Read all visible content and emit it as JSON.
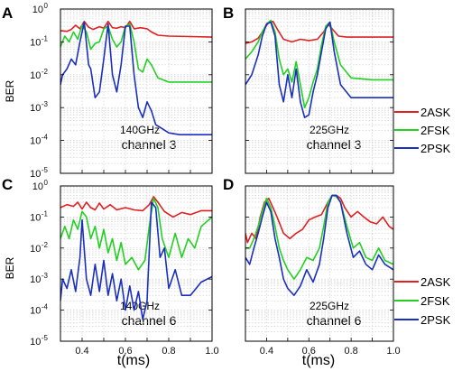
{
  "figure": {
    "x_axis_label": "t(ms)",
    "y_axis_label": "BER"
  },
  "legend": {
    "entries": [
      {
        "label": "2ASK",
        "color": "#e02020"
      },
      {
        "label": "2FSK",
        "color": "#22d022"
      },
      {
        "label": "2PSK",
        "color": "#1a2fc0"
      }
    ]
  },
  "chart_data": [
    {
      "type": "line",
      "panel": "A",
      "annotation_freq": "140GHz",
      "annotation_channel": "channel 3",
      "x_range": [
        0.3,
        1.0
      ],
      "y_range": [
        1e-05,
        1
      ],
      "y_scale": "log",
      "x_ticks": [],
      "y_ticks": [
        "10-5",
        "10-4",
        "10-3",
        "10-2",
        "10-1",
        "100"
      ],
      "grid": true,
      "series": [
        {
          "name": "2ASK",
          "color": "#e02020",
          "x": [
            0.3,
            0.33,
            0.35,
            0.37,
            0.39,
            0.41,
            0.43,
            0.45,
            0.48,
            0.5,
            0.52,
            0.54,
            0.56,
            0.58,
            0.6,
            0.62,
            0.64,
            0.67,
            0.7,
            0.72,
            0.75,
            0.8,
            0.9,
            1.0
          ],
          "y": [
            0.22,
            0.21,
            0.24,
            0.32,
            0.25,
            0.42,
            0.28,
            0.24,
            0.29,
            0.26,
            0.42,
            0.27,
            0.26,
            0.29,
            0.27,
            0.42,
            0.25,
            0.27,
            0.25,
            0.2,
            0.16,
            0.15,
            0.145,
            0.14
          ]
        },
        {
          "name": "2FSK",
          "color": "#22d022",
          "x": [
            0.3,
            0.32,
            0.34,
            0.36,
            0.38,
            0.4,
            0.42,
            0.44,
            0.46,
            0.48,
            0.5,
            0.52,
            0.54,
            0.56,
            0.58,
            0.6,
            0.62,
            0.64,
            0.66,
            0.68,
            0.7,
            0.72,
            0.75,
            0.8,
            0.9,
            1.0
          ],
          "y": [
            0.07,
            0.15,
            0.1,
            0.2,
            0.12,
            0.32,
            0.2,
            0.06,
            0.09,
            0.1,
            0.25,
            0.3,
            0.12,
            0.07,
            0.1,
            0.3,
            0.35,
            0.1,
            0.015,
            0.012,
            0.03,
            0.02,
            0.008,
            0.006,
            0.006,
            0.006
          ]
        },
        {
          "name": "2PSK",
          "color": "#1a2fc0",
          "x": [
            0.3,
            0.31,
            0.33,
            0.35,
            0.37,
            0.39,
            0.41,
            0.43,
            0.44,
            0.46,
            0.48,
            0.5,
            0.52,
            0.54,
            0.56,
            0.58,
            0.6,
            0.62,
            0.64,
            0.66,
            0.68,
            0.7,
            0.72,
            0.74,
            0.76,
            0.8,
            0.85,
            0.9,
            1.0
          ],
          "y": [
            0.005,
            0.01,
            0.015,
            0.03,
            0.02,
            0.1,
            0.4,
            0.02,
            0.015,
            0.002,
            0.003,
            0.03,
            0.35,
            0.01,
            0.003,
            0.02,
            0.3,
            0.3,
            0.01,
            0.001,
            0.0005,
            0.0015,
            0.0008,
            0.0003,
            0.00025,
            0.00017,
            0.00015,
            0.00015,
            0.00015
          ]
        }
      ]
    },
    {
      "type": "line",
      "panel": "B",
      "annotation_freq": "225GHz",
      "annotation_channel": "channel 3",
      "x_range": [
        0.3,
        1.0
      ],
      "y_range": [
        1e-05,
        1
      ],
      "y_scale": "log",
      "x_ticks": [],
      "y_ticks": [],
      "grid": true,
      "series": [
        {
          "name": "2ASK",
          "color": "#e02020",
          "x": [
            0.3,
            0.33,
            0.36,
            0.39,
            0.41,
            0.43,
            0.45,
            0.48,
            0.52,
            0.56,
            0.6,
            0.64,
            0.67,
            0.69,
            0.71,
            0.74,
            0.78,
            0.85,
            1.0
          ],
          "y": [
            0.09,
            0.1,
            0.13,
            0.25,
            0.4,
            0.42,
            0.25,
            0.12,
            0.1,
            0.12,
            0.11,
            0.12,
            0.2,
            0.35,
            0.25,
            0.15,
            0.14,
            0.14,
            0.14
          ]
        },
        {
          "name": "2FSK",
          "color": "#22d022",
          "x": [
            0.3,
            0.33,
            0.36,
            0.38,
            0.4,
            0.42,
            0.44,
            0.46,
            0.48,
            0.5,
            0.52,
            0.54,
            0.56,
            0.58,
            0.6,
            0.62,
            0.64,
            0.66,
            0.68,
            0.7,
            0.72,
            0.75,
            0.8,
            0.9,
            1.0
          ],
          "y": [
            0.03,
            0.05,
            0.1,
            0.2,
            0.35,
            0.45,
            0.2,
            0.03,
            0.01,
            0.015,
            0.006,
            0.025,
            0.005,
            0.001,
            0.002,
            0.006,
            0.015,
            0.08,
            0.3,
            0.4,
            0.1,
            0.02,
            0.008,
            0.007,
            0.007
          ]
        },
        {
          "name": "2PSK",
          "color": "#1a2fc0",
          "x": [
            0.3,
            0.33,
            0.36,
            0.38,
            0.4,
            0.42,
            0.44,
            0.46,
            0.48,
            0.5,
            0.52,
            0.54,
            0.56,
            0.58,
            0.6,
            0.62,
            0.64,
            0.66,
            0.68,
            0.7,
            0.72,
            0.75,
            0.8,
            0.9,
            1.0
          ],
          "y": [
            0.005,
            0.01,
            0.04,
            0.15,
            0.35,
            0.4,
            0.15,
            0.005,
            0.0015,
            0.01,
            0.002,
            0.015,
            0.0015,
            0.0005,
            0.0006,
            0.003,
            0.01,
            0.05,
            0.25,
            0.4,
            0.05,
            0.005,
            0.002,
            0.002,
            0.002
          ]
        }
      ]
    },
    {
      "type": "line",
      "panel": "C",
      "annotation_freq": "140GHz",
      "annotation_channel": "channel 6",
      "x_range": [
        0.3,
        1.0
      ],
      "y_range": [
        1e-05,
        1
      ],
      "y_scale": "log",
      "x_ticks": [
        "0.4",
        "0.6",
        "0.8",
        "1.0"
      ],
      "y_ticks": [
        "10-5",
        "10-4",
        "10-3",
        "10-2",
        "10-1",
        "100"
      ],
      "grid": true,
      "series": [
        {
          "name": "2ASK",
          "color": "#e02020",
          "x": [
            0.3,
            0.33,
            0.36,
            0.38,
            0.4,
            0.42,
            0.44,
            0.46,
            0.48,
            0.5,
            0.53,
            0.56,
            0.6,
            0.64,
            0.68,
            0.71,
            0.73,
            0.75,
            0.78,
            0.82,
            0.86,
            0.9,
            0.95,
            1.0
          ],
          "y": [
            0.2,
            0.25,
            0.22,
            0.3,
            0.18,
            0.3,
            0.2,
            0.17,
            0.28,
            0.18,
            0.25,
            0.17,
            0.2,
            0.17,
            0.16,
            0.25,
            0.45,
            0.3,
            0.15,
            0.1,
            0.14,
            0.12,
            0.16,
            0.16
          ]
        },
        {
          "name": "2FSK",
          "color": "#22d022",
          "x": [
            0.3,
            0.32,
            0.34,
            0.36,
            0.38,
            0.4,
            0.42,
            0.44,
            0.46,
            0.48,
            0.5,
            0.52,
            0.54,
            0.56,
            0.58,
            0.6,
            0.63,
            0.66,
            0.69,
            0.71,
            0.73,
            0.75,
            0.77,
            0.8,
            0.83,
            0.86,
            0.89,
            0.92,
            0.95,
            1.0
          ],
          "y": [
            0.02,
            0.05,
            0.02,
            0.08,
            0.04,
            0.15,
            0.1,
            0.02,
            0.05,
            0.01,
            0.04,
            0.007,
            0.02,
            0.004,
            0.015,
            0.003,
            0.005,
            0.002,
            0.004,
            0.05,
            0.4,
            0.2,
            0.02,
            0.005,
            0.03,
            0.005,
            0.02,
            0.01,
            0.05,
            0.1
          ]
        },
        {
          "name": "2PSK",
          "color": "#1a2fc0",
          "x": [
            0.3,
            0.31,
            0.33,
            0.35,
            0.37,
            0.39,
            0.4,
            0.42,
            0.44,
            0.46,
            0.48,
            0.5,
            0.52,
            0.54,
            0.56,
            0.58,
            0.6,
            0.62,
            0.64,
            0.66,
            0.68,
            0.7,
            0.72,
            0.74,
            0.76,
            0.78,
            0.8,
            0.83,
            0.86,
            0.9,
            0.95,
            1.0
          ],
          "y": [
            0.0002,
            0.001,
            0.0005,
            0.002,
            0.0004,
            0.005,
            0.08,
            0.001,
            0.0003,
            0.003,
            0.0004,
            0.004,
            0.0003,
            0.0015,
            0.0002,
            0.001,
            0.0001,
            0.0006,
            0.0001,
            0.0004,
            5e-05,
            0.0002,
            0.3,
            0.2,
            0.005,
            0.01,
            0.0005,
            0.002,
            0.0003,
            0.0003,
            0.0008,
            0.0012
          ]
        }
      ]
    },
    {
      "type": "line",
      "panel": "D",
      "annotation_freq": "225GHz",
      "annotation_channel": "channel 6",
      "x_range": [
        0.3,
        1.0
      ],
      "y_range": [
        1e-05,
        1
      ],
      "y_scale": "log",
      "x_ticks": [
        "0.4",
        "0.6",
        "0.8",
        "1.0"
      ],
      "y_ticks": [],
      "grid": true,
      "series": [
        {
          "name": "2ASK",
          "color": "#e02020",
          "x": [
            0.3,
            0.31,
            0.33,
            0.35,
            0.37,
            0.39,
            0.41,
            0.43,
            0.45,
            0.48,
            0.51,
            0.54,
            0.57,
            0.6,
            0.63,
            0.66,
            0.69,
            0.71,
            0.73,
            0.75,
            0.77,
            0.8,
            0.83,
            0.86,
            0.89,
            0.92,
            0.95,
            0.98,
            1.0
          ],
          "y": [
            0.03,
            0.015,
            0.03,
            0.02,
            0.1,
            0.3,
            0.4,
            0.2,
            0.1,
            0.03,
            0.02,
            0.03,
            0.04,
            0.08,
            0.1,
            0.12,
            0.3,
            0.5,
            0.5,
            0.4,
            0.2,
            0.1,
            0.15,
            0.1,
            0.07,
            0.06,
            0.1,
            0.05,
            0.04
          ]
        },
        {
          "name": "2FSK",
          "color": "#22d022",
          "x": [
            0.3,
            0.32,
            0.34,
            0.36,
            0.38,
            0.4,
            0.42,
            0.44,
            0.46,
            0.48,
            0.5,
            0.53,
            0.56,
            0.59,
            0.62,
            0.65,
            0.67,
            0.69,
            0.71,
            0.73,
            0.75,
            0.78,
            0.81,
            0.84,
            0.87,
            0.9,
            0.93,
            0.96,
            1.0
          ],
          "y": [
            0.01,
            0.01,
            0.02,
            0.05,
            0.15,
            0.4,
            0.2,
            0.05,
            0.01,
            0.004,
            0.002,
            0.001,
            0.002,
            0.005,
            0.004,
            0.01,
            0.05,
            0.3,
            0.5,
            0.45,
            0.3,
            0.05,
            0.01,
            0.015,
            0.005,
            0.004,
            0.01,
            0.004,
            0.003
          ]
        },
        {
          "name": "2PSK",
          "color": "#1a2fc0",
          "x": [
            0.3,
            0.32,
            0.34,
            0.36,
            0.38,
            0.4,
            0.42,
            0.44,
            0.46,
            0.48,
            0.5,
            0.53,
            0.56,
            0.59,
            0.62,
            0.65,
            0.67,
            0.69,
            0.71,
            0.73,
            0.75,
            0.78,
            0.81,
            0.84,
            0.87,
            0.9,
            0.93,
            0.96,
            1.0
          ],
          "y": [
            0.005,
            0.003,
            0.01,
            0.03,
            0.1,
            0.3,
            0.15,
            0.02,
            0.005,
            0.001,
            0.0005,
            0.0003,
            0.0006,
            0.002,
            0.0008,
            0.003,
            0.02,
            0.2,
            0.5,
            0.5,
            0.3,
            0.03,
            0.005,
            0.008,
            0.003,
            0.002,
            0.006,
            0.003,
            0.002
          ]
        }
      ]
    }
  ]
}
